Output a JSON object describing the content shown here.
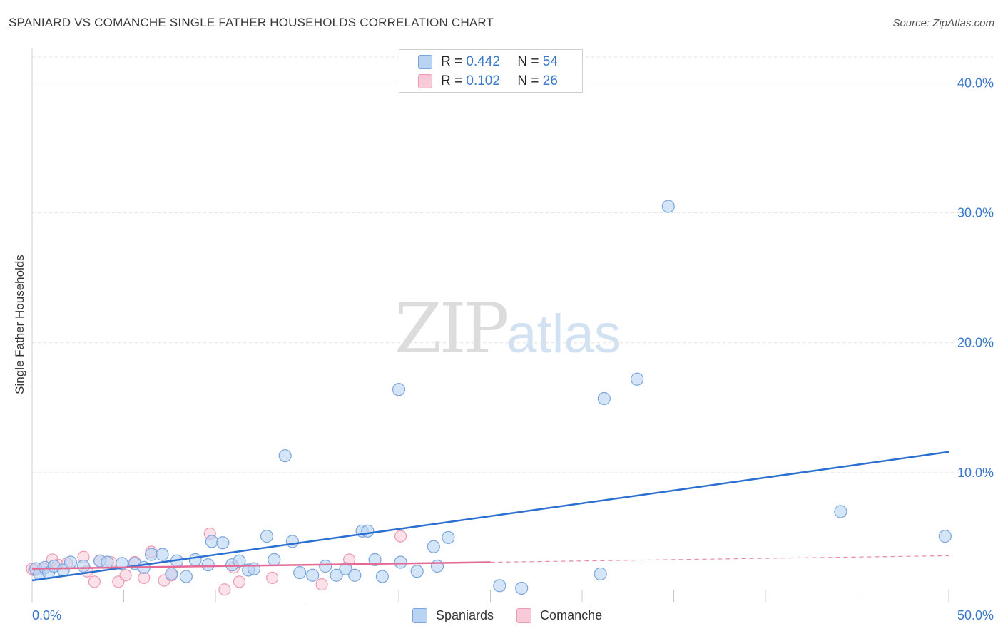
{
  "title": "SPANIARD VS COMANCHE SINGLE FATHER HOUSEHOLDS CORRELATION CHART",
  "source": "Source: ZipAtlas.com",
  "watermark": {
    "zip": "ZIP",
    "atlas": "atlas"
  },
  "legend": {
    "r_label": "R =",
    "n_label": "N =",
    "spaniards": {
      "r": "0.442",
      "n": "54"
    },
    "comanche": {
      "r": "0.102",
      "n": "26"
    }
  },
  "bottom_legend": {
    "spaniards": "Spaniards",
    "comanche": "Comanche"
  },
  "colors": {
    "spaniards_fill": "#b9d3f3",
    "spaniards_stroke": "#7aa6dd",
    "spaniards_line": "#2b6fd1",
    "comanche_fill": "#f8c9d6",
    "comanche_stroke": "#ee9ab3",
    "comanche_line": "#e46a95",
    "tick_label": "#3a78c9",
    "grid": "#e2e2e2"
  },
  "chart_data": {
    "type": "scatter",
    "title": "SPANIARD VS COMANCHE SINGLE FATHER HOUSEHOLDS CORRELATION CHART",
    "xlabel": "",
    "ylabel": "Single Father Households",
    "xlim": [
      0,
      50
    ],
    "ylim": [
      0,
      42
    ],
    "x_tick_labels": [
      "0.0%",
      "50.0%"
    ],
    "y_ticks": [
      10,
      20,
      30,
      40
    ],
    "y_tick_labels": [
      "10.0%",
      "20.0%",
      "30.0%",
      "40.0%"
    ],
    "grid": true,
    "legend_position": "top-center",
    "series": [
      {
        "name": "Spaniards",
        "R": 0.442,
        "N": 54,
        "points": [
          [
            0.2,
            2.6
          ],
          [
            0.4,
            2.2
          ],
          [
            0.7,
            2.7
          ],
          [
            0.9,
            2.3
          ],
          [
            1.2,
            2.8
          ],
          [
            1.7,
            2.5
          ],
          [
            2.1,
            3.1
          ],
          [
            2.8,
            2.8
          ],
          [
            3.7,
            3.2
          ],
          [
            4.1,
            3.1
          ],
          [
            4.9,
            3.0
          ],
          [
            5.6,
            3.0
          ],
          [
            6.1,
            2.7
          ],
          [
            6.5,
            3.7
          ],
          [
            7.1,
            3.7
          ],
          [
            7.6,
            2.2
          ],
          [
            7.9,
            3.2
          ],
          [
            8.4,
            2.0
          ],
          [
            8.9,
            3.3
          ],
          [
            9.6,
            2.9
          ],
          [
            9.8,
            4.7
          ],
          [
            10.4,
            4.6
          ],
          [
            10.9,
            2.9
          ],
          [
            11.3,
            3.2
          ],
          [
            11.8,
            2.5
          ],
          [
            12.1,
            2.6
          ],
          [
            12.8,
            5.1
          ],
          [
            13.2,
            3.3
          ],
          [
            13.8,
            11.3
          ],
          [
            14.2,
            4.7
          ],
          [
            14.6,
            2.3
          ],
          [
            15.3,
            2.1
          ],
          [
            16.0,
            2.8
          ],
          [
            16.6,
            2.1
          ],
          [
            17.1,
            2.6
          ],
          [
            17.6,
            2.1
          ],
          [
            18.0,
            5.5
          ],
          [
            18.3,
            5.5
          ],
          [
            18.7,
            3.3
          ],
          [
            19.1,
            2.0
          ],
          [
            20.0,
            16.4
          ],
          [
            20.1,
            3.1
          ],
          [
            21.0,
            2.4
          ],
          [
            21.9,
            4.3
          ],
          [
            22.1,
            2.8
          ],
          [
            22.7,
            5.0
          ],
          [
            25.5,
            1.3
          ],
          [
            26.7,
            1.1
          ],
          [
            31.0,
            2.2
          ],
          [
            31.2,
            15.7
          ],
          [
            33.0,
            17.2
          ],
          [
            34.7,
            30.5
          ],
          [
            44.1,
            7.0
          ],
          [
            49.8,
            5.1
          ]
        ],
        "trend": {
          "x": [
            0,
            50
          ],
          "y": [
            1.7,
            11.6
          ]
        }
      },
      {
        "name": "Comanche",
        "R": 0.102,
        "N": 26,
        "points": [
          [
            0.1,
            2.5
          ],
          [
            0.6,
            2.6
          ],
          [
            1.1,
            3.3
          ],
          [
            1.4,
            2.9
          ],
          [
            1.9,
            3.0
          ],
          [
            2.8,
            3.5
          ],
          [
            3.0,
            2.4
          ],
          [
            3.4,
            1.6
          ],
          [
            3.7,
            3.2
          ],
          [
            4.3,
            3.1
          ],
          [
            4.7,
            1.6
          ],
          [
            5.1,
            2.1
          ],
          [
            5.6,
            3.1
          ],
          [
            6.1,
            1.9
          ],
          [
            6.5,
            3.9
          ],
          [
            7.2,
            1.7
          ],
          [
            7.6,
            2.1
          ],
          [
            9.7,
            5.3
          ],
          [
            10.5,
            1.0
          ],
          [
            11.0,
            2.7
          ],
          [
            11.3,
            1.6
          ],
          [
            13.1,
            1.9
          ],
          [
            15.8,
            1.4
          ],
          [
            17.3,
            3.3
          ],
          [
            20.1,
            5.1
          ],
          [
            0.0,
            2.6
          ]
        ],
        "trend": {
          "x": [
            0,
            25
          ],
          "y": [
            2.6,
            3.1
          ]
        },
        "trend_extension": {
          "x": [
            25,
            50
          ],
          "y": [
            3.1,
            3.6
          ]
        }
      }
    ]
  }
}
